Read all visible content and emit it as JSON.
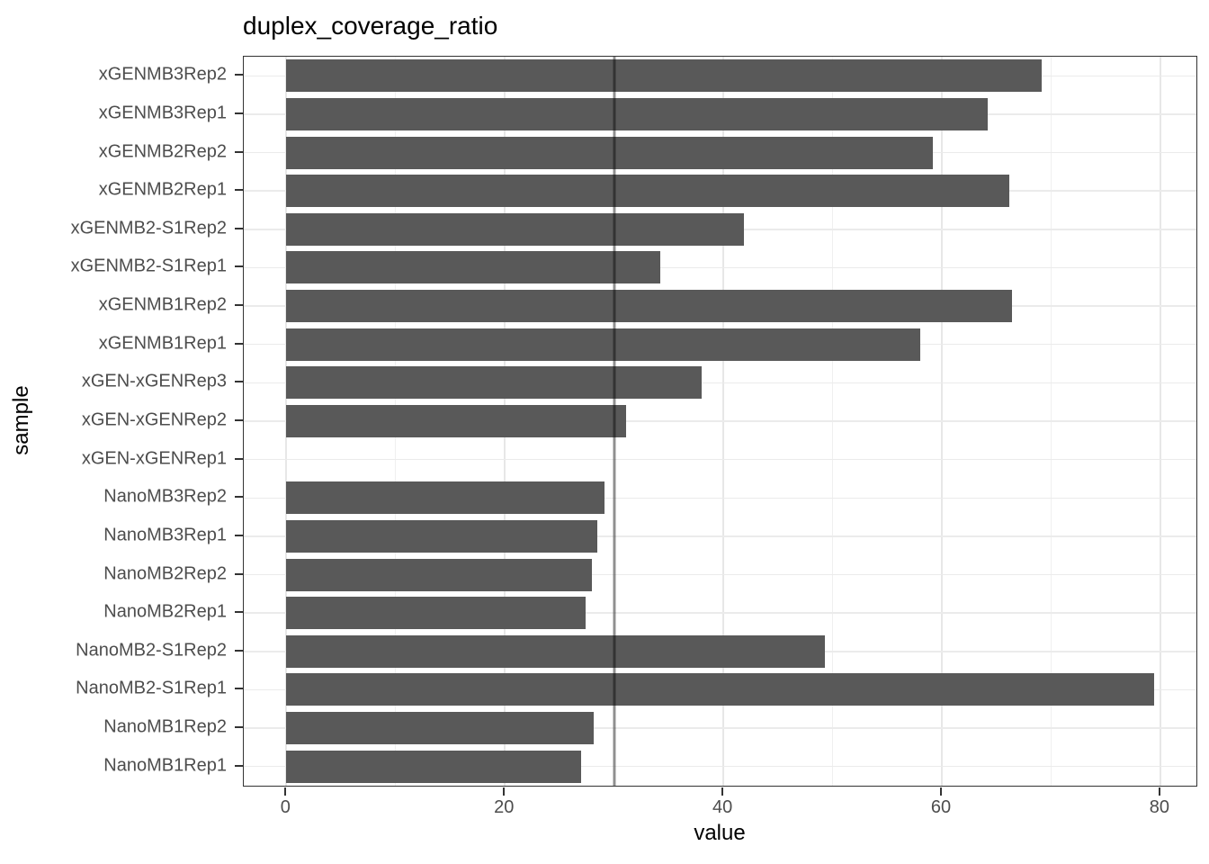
{
  "page": {
    "background": "#ffffff"
  },
  "chart_data": {
    "type": "bar",
    "orientation": "horizontal",
    "title": "duplex_coverage_ratio",
    "xlabel": "value",
    "ylabel": "sample",
    "categories": [
      "xGENMB3Rep2",
      "xGENMB3Rep1",
      "xGENMB2Rep2",
      "xGENMB2Rep1",
      "xGENMB2-S1Rep2",
      "xGENMB2-S1Rep1",
      "xGENMB1Rep2",
      "xGENMB1Rep1",
      "xGEN-xGENRep3",
      "xGEN-xGENRep2",
      "xGEN-xGENRep1",
      "NanoMB3Rep2",
      "NanoMB3Rep1",
      "NanoMB2Rep2",
      "NanoMB2Rep1",
      "NanoMB2-S1Rep2",
      "NanoMB2-S1Rep1",
      "NanoMB1Rep2",
      "NanoMB1Rep1"
    ],
    "values": [
      69.1,
      64.2,
      59.2,
      66.2,
      41.9,
      34.2,
      66.4,
      58.0,
      38.0,
      31.1,
      0,
      29.1,
      28.5,
      28.0,
      27.4,
      49.3,
      79.4,
      28.1,
      27.0
    ],
    "x_major_ticks": [
      0,
      20,
      40,
      60,
      80
    ],
    "x_minor_ticks": [
      10,
      30,
      50,
      70
    ],
    "xlim": [
      -3.9,
      83.3
    ],
    "reference_line_x": 30,
    "grid": "major+minor",
    "legend_position": "none",
    "colors": {
      "bar": "#595959",
      "reference_line": "rgba(0,0,0,0.42)",
      "grid_major": "#e7e7e7",
      "grid_minor": "#f0f0f0",
      "grid_horizontal": "#ebebeb",
      "panel_border": "#333333",
      "tick_label": "#4d4d4d",
      "title": "#000000",
      "background": "#ffffff"
    }
  }
}
